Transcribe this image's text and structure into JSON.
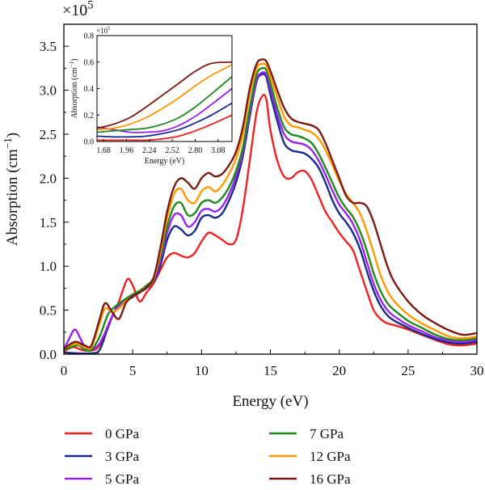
{
  "chart_data": [
    {
      "type": "line",
      "title": "",
      "xlabel": "Energy (eV)",
      "ylabel": "Absorption (cm",
      "ylabel_sup": "−1",
      "ylabel_close": ")",
      "y_multiplier": "×10",
      "y_multiplier_exp": "5",
      "xlim": [
        0,
        30
      ],
      "ylim": [
        0,
        3.75
      ],
      "x_ticks": [
        "0",
        "5",
        "10",
        "15",
        "20",
        "25",
        "30"
      ],
      "y_ticks": [
        "0.0",
        "0.5",
        "1.0",
        "1.5",
        "2.0",
        "2.5",
        "3.0",
        "3.5"
      ],
      "legend_position": "bottom",
      "series": [
        {
          "name": "0 GPa",
          "color": "#ee2222",
          "x": [
            0,
            0.7,
            1.5,
            2.5,
            3.3,
            4.0,
            4.6,
            5.0,
            5.5,
            6.0,
            6.5,
            7.0,
            7.5,
            8.0,
            8.5,
            9.0,
            9.5,
            10.0,
            10.5,
            11.0,
            11.5,
            12.0,
            12.5,
            13.0,
            13.5,
            14.0,
            14.4,
            14.7,
            15.0,
            15.5,
            16.0,
            16.5,
            17.0,
            17.5,
            18.0,
            18.5,
            19.0,
            19.5,
            20.0,
            20.5,
            21.0,
            21.5,
            22.0,
            22.5,
            23.0,
            23.5,
            24.0,
            25.0,
            26.0,
            27.0,
            28.0,
            29.0,
            30.0
          ],
          "y": [
            0.03,
            0.08,
            0.04,
            0.08,
            0.36,
            0.6,
            0.85,
            0.78,
            0.6,
            0.7,
            0.8,
            0.95,
            1.1,
            1.15,
            1.12,
            1.1,
            1.15,
            1.28,
            1.38,
            1.35,
            1.3,
            1.25,
            1.3,
            1.65,
            2.2,
            2.75,
            2.93,
            2.9,
            2.55,
            2.2,
            2.02,
            2.0,
            2.07,
            2.08,
            1.98,
            1.8,
            1.62,
            1.5,
            1.38,
            1.28,
            1.18,
            0.95,
            0.72,
            0.5,
            0.4,
            0.35,
            0.33,
            0.28,
            0.22,
            0.16,
            0.11,
            0.1,
            0.12
          ]
        },
        {
          "name": "3 GPa",
          "color": "#1a2a8c",
          "x": [
            0,
            1.0,
            2.0,
            2.6,
            3.2,
            3.8,
            4.5,
            5.0,
            5.5,
            6.0,
            6.5,
            7.0,
            7.5,
            8.0,
            8.5,
            9.0,
            9.5,
            10.0,
            10.5,
            11.0,
            11.5,
            12.0,
            12.5,
            13.0,
            13.5,
            14.0,
            14.4,
            14.7,
            15.0,
            15.5,
            16.0,
            16.5,
            17.0,
            17.5,
            18.0,
            18.5,
            19.0,
            19.5,
            20.0,
            20.5,
            21.0,
            21.5,
            22.0,
            22.5,
            23.0,
            23.5,
            24.0,
            25.0,
            26.0,
            27.0,
            28.0,
            29.0,
            30.0
          ],
          "y": [
            0.02,
            0.01,
            0.01,
            0.05,
            0.3,
            0.52,
            0.6,
            0.65,
            0.7,
            0.75,
            0.82,
            1.0,
            1.3,
            1.45,
            1.42,
            1.35,
            1.4,
            1.55,
            1.58,
            1.55,
            1.6,
            1.75,
            1.95,
            2.25,
            2.7,
            3.1,
            3.18,
            3.15,
            2.95,
            2.65,
            2.4,
            2.32,
            2.3,
            2.28,
            2.22,
            2.12,
            1.95,
            1.75,
            1.6,
            1.5,
            1.38,
            1.2,
            0.95,
            0.72,
            0.55,
            0.44,
            0.38,
            0.3,
            0.23,
            0.17,
            0.13,
            0.12,
            0.14
          ]
        },
        {
          "name": "5 GPa",
          "color": "#9922ee",
          "x": [
            0,
            0.4,
            0.8,
            1.2,
            1.6,
            2.0,
            2.6,
            3.2,
            3.8,
            4.5,
            5.0,
            5.5,
            6.0,
            6.5,
            7.0,
            7.5,
            8.0,
            8.5,
            9.0,
            9.5,
            10.0,
            10.5,
            11.0,
            11.5,
            12.0,
            12.5,
            13.0,
            13.5,
            14.0,
            14.4,
            14.7,
            15.0,
            15.5,
            16.0,
            16.5,
            17.0,
            17.5,
            18.0,
            18.5,
            19.0,
            19.5,
            20.0,
            20.5,
            21.0,
            21.5,
            22.0,
            22.5,
            23.0,
            23.5,
            24.0,
            25.0,
            26.0,
            27.0,
            28.0,
            29.0,
            30.0
          ],
          "y": [
            0.05,
            0.18,
            0.28,
            0.18,
            0.06,
            0.05,
            0.12,
            0.32,
            0.52,
            0.62,
            0.66,
            0.7,
            0.76,
            0.84,
            1.05,
            1.38,
            1.58,
            1.58,
            1.45,
            1.5,
            1.63,
            1.65,
            1.62,
            1.68,
            1.82,
            2.02,
            2.3,
            2.75,
            3.12,
            3.2,
            3.18,
            3.02,
            2.72,
            2.5,
            2.42,
            2.4,
            2.38,
            2.32,
            2.2,
            2.04,
            1.86,
            1.7,
            1.6,
            1.48,
            1.3,
            1.05,
            0.8,
            0.62,
            0.5,
            0.43,
            0.33,
            0.26,
            0.19,
            0.15,
            0.14,
            0.16
          ]
        },
        {
          "name": "7 GPa",
          "color": "#1e8a1e",
          "x": [
            0,
            1.0,
            1.5,
            2.0,
            2.6,
            3.2,
            3.8,
            4.5,
            5.0,
            5.5,
            6.0,
            6.5,
            7.0,
            7.5,
            8.0,
            8.5,
            9.0,
            9.5,
            10.0,
            10.5,
            11.0,
            11.5,
            12.0,
            12.5,
            13.0,
            13.5,
            14.0,
            14.4,
            14.7,
            15.0,
            15.5,
            16.0,
            16.5,
            17.0,
            17.5,
            18.0,
            18.5,
            19.0,
            19.5,
            20.0,
            20.5,
            21.0,
            21.5,
            22.0,
            22.5,
            23.0,
            23.5,
            24.0,
            25.0,
            26.0,
            27.0,
            28.0,
            29.0,
            30.0
          ],
          "y": [
            0.05,
            0.1,
            0.05,
            0.05,
            0.2,
            0.45,
            0.55,
            0.63,
            0.68,
            0.72,
            0.78,
            0.86,
            1.1,
            1.45,
            1.68,
            1.72,
            1.58,
            1.6,
            1.72,
            1.75,
            1.72,
            1.78,
            1.9,
            2.08,
            2.35,
            2.8,
            3.18,
            3.25,
            3.23,
            3.08,
            2.8,
            2.58,
            2.5,
            2.48,
            2.45,
            2.4,
            2.28,
            2.12,
            1.95,
            1.78,
            1.66,
            1.56,
            1.4,
            1.18,
            0.92,
            0.72,
            0.58,
            0.5,
            0.38,
            0.3,
            0.22,
            0.17,
            0.16,
            0.18
          ]
        },
        {
          "name": "12 GPa",
          "color": "#ff9900",
          "x": [
            0,
            0.8,
            1.5,
            2.0,
            2.6,
            3.0,
            3.5,
            4.0,
            4.5,
            5.0,
            5.5,
            6.0,
            6.5,
            7.0,
            7.5,
            8.0,
            8.5,
            9.0,
            9.5,
            10.0,
            10.5,
            11.0,
            11.5,
            12.0,
            12.5,
            13.0,
            13.5,
            14.0,
            14.4,
            14.7,
            15.0,
            15.5,
            16.0,
            16.5,
            17.0,
            17.5,
            18.0,
            18.5,
            19.0,
            19.5,
            20.0,
            20.5,
            21.0,
            21.5,
            22.0,
            22.5,
            23.0,
            23.5,
            24.0,
            25.0,
            26.0,
            27.0,
            28.0,
            29.0,
            30.0
          ],
          "y": [
            0.06,
            0.12,
            0.08,
            0.08,
            0.35,
            0.52,
            0.48,
            0.52,
            0.6,
            0.66,
            0.7,
            0.76,
            0.84,
            1.15,
            1.55,
            1.82,
            1.88,
            1.75,
            1.72,
            1.85,
            1.9,
            1.85,
            1.92,
            2.05,
            2.22,
            2.5,
            2.95,
            3.25,
            3.3,
            3.28,
            3.15,
            2.92,
            2.7,
            2.6,
            2.58,
            2.55,
            2.52,
            2.45,
            2.32,
            2.15,
            1.97,
            1.82,
            1.72,
            1.6,
            1.4,
            1.15,
            0.9,
            0.72,
            0.6,
            0.45,
            0.35,
            0.27,
            0.2,
            0.18,
            0.2
          ]
        },
        {
          "name": "16 GPa",
          "color": "#7a1a12",
          "x": [
            0,
            0.8,
            1.5,
            2.0,
            2.6,
            3.0,
            3.5,
            4.0,
            4.5,
            5.0,
            5.5,
            6.0,
            6.5,
            7.0,
            7.5,
            8.0,
            8.5,
            9.0,
            9.5,
            10.0,
            10.5,
            11.0,
            11.5,
            12.0,
            12.5,
            13.0,
            13.5,
            14.0,
            14.4,
            14.7,
            15.0,
            15.5,
            16.0,
            16.5,
            17.0,
            17.5,
            18.0,
            18.5,
            19.0,
            19.5,
            20.0,
            20.5,
            21.0,
            21.5,
            22.0,
            22.5,
            23.0,
            23.5,
            24.0,
            25.0,
            26.0,
            27.0,
            28.0,
            29.0,
            30.0
          ],
          "y": [
            0.06,
            0.14,
            0.1,
            0.1,
            0.4,
            0.58,
            0.48,
            0.4,
            0.58,
            0.66,
            0.7,
            0.76,
            0.86,
            1.2,
            1.62,
            1.9,
            2.0,
            1.95,
            1.88,
            2.0,
            2.06,
            2.02,
            2.05,
            2.15,
            2.3,
            2.58,
            3.02,
            3.3,
            3.35,
            3.33,
            3.22,
            3.0,
            2.8,
            2.68,
            2.64,
            2.62,
            2.6,
            2.55,
            2.4,
            2.2,
            2.0,
            1.8,
            1.72,
            1.72,
            1.68,
            1.5,
            1.25,
            1.0,
            0.82,
            0.6,
            0.45,
            0.35,
            0.27,
            0.22,
            0.24
          ]
        }
      ]
    },
    {
      "type": "line",
      "title": "",
      "xlabel": "Energy (eV)",
      "ylabel": "Absorption (cm",
      "ylabel_sup": "−1",
      "ylabel_close": ")",
      "y_multiplier": "×10",
      "y_multiplier_exp": "5",
      "xlim": [
        1.6,
        3.25
      ],
      "ylim": [
        0,
        0.8
      ],
      "x_ticks": [
        "1.68",
        "1.96",
        "2.24",
        "2.52",
        "2.80",
        "3.08"
      ],
      "x_tick_values": [
        1.68,
        1.96,
        2.24,
        2.52,
        2.8,
        3.08
      ],
      "y_ticks": [
        "0.0",
        "0.2",
        "0.4",
        "0.6",
        "0.8"
      ],
      "series": [
        {
          "name": "0 GPa",
          "color": "#ee2222",
          "x": [
            1.6,
            1.8,
            2.0,
            2.2,
            2.4,
            2.6,
            2.8,
            3.0,
            3.25
          ],
          "y": [
            0.01,
            0.01,
            0.01,
            0.01,
            0.02,
            0.04,
            0.08,
            0.13,
            0.2
          ]
        },
        {
          "name": "3 GPa",
          "color": "#1a2a8c",
          "x": [
            1.6,
            1.8,
            2.0,
            2.2,
            2.4,
            2.6,
            2.8,
            3.0,
            3.25
          ],
          "y": [
            0.04,
            0.035,
            0.035,
            0.04,
            0.06,
            0.09,
            0.14,
            0.2,
            0.29
          ]
        },
        {
          "name": "5 GPa",
          "color": "#9922ee",
          "x": [
            1.6,
            1.8,
            2.0,
            2.2,
            2.4,
            2.6,
            2.8,
            3.0,
            3.25
          ],
          "y": [
            0.11,
            0.09,
            0.07,
            0.07,
            0.08,
            0.12,
            0.19,
            0.28,
            0.4
          ]
        },
        {
          "name": "7 GPa",
          "color": "#1e8a1e",
          "x": [
            1.6,
            1.8,
            2.0,
            2.2,
            2.4,
            2.6,
            2.8,
            3.0,
            3.25
          ],
          "y": [
            0.07,
            0.08,
            0.09,
            0.1,
            0.13,
            0.18,
            0.26,
            0.36,
            0.49
          ]
        },
        {
          "name": "12 GPa",
          "color": "#ff9900",
          "x": [
            1.6,
            1.8,
            2.0,
            2.2,
            2.4,
            2.6,
            2.8,
            3.0,
            3.25
          ],
          "y": [
            0.09,
            0.1,
            0.13,
            0.18,
            0.25,
            0.33,
            0.42,
            0.5,
            0.58
          ]
        },
        {
          "name": "16 GPa",
          "color": "#7a1a12",
          "x": [
            1.6,
            1.8,
            2.0,
            2.2,
            2.4,
            2.6,
            2.8,
            3.0,
            3.25
          ],
          "y": [
            0.1,
            0.13,
            0.18,
            0.26,
            0.35,
            0.44,
            0.53,
            0.59,
            0.6
          ]
        }
      ]
    }
  ],
  "legend": {
    "columns": [
      [
        "0 GPa",
        "3 GPa",
        "5 GPa"
      ],
      [
        "7 GPa",
        "12 GPa",
        "16 GPa"
      ]
    ]
  }
}
